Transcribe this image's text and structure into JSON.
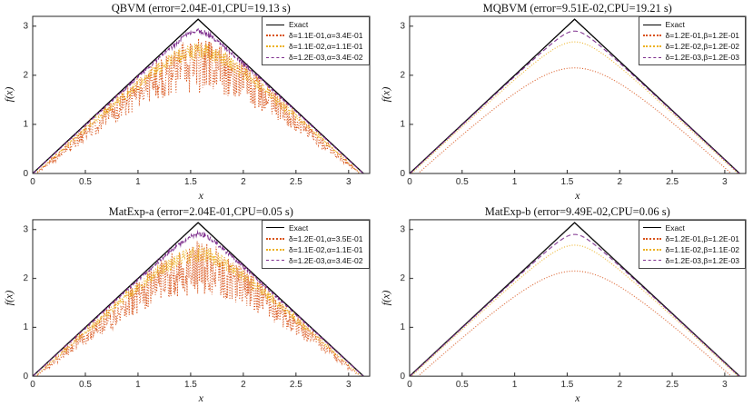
{
  "figure": {
    "background": "#ffffff",
    "axis_color": "#262626",
    "palette": {
      "exact": "#000000",
      "series1": "#D95319",
      "series2": "#EDB120",
      "series3": "#7E2F8E"
    }
  },
  "chart_data": [
    {
      "type": "line",
      "title": "QBVM (error=2.04E-01,CPU=19.13 s)",
      "xlabel": "x",
      "ylabel": "f(x)",
      "xlim": [
        0,
        3.2
      ],
      "ylim": [
        0,
        3.2
      ],
      "xticks": [
        0,
        0.5,
        1,
        1.5,
        2,
        2.5,
        3
      ],
      "xtick_labels": [
        "0",
        "0.5",
        "1",
        "1.5",
        "2",
        "2.5",
        "3"
      ],
      "yticks": [
        0,
        1,
        2,
        3
      ],
      "ytick_labels": [
        "0",
        "1",
        "2",
        "3"
      ],
      "legend_position": "top-right",
      "grid": false,
      "series": [
        {
          "name": "Exact",
          "color": "#000000",
          "style": "solid",
          "shape": "triangle",
          "peak_x": 1.5708,
          "peak_y": 3.1416,
          "points": [
            [
              0,
              0
            ],
            [
              1.5708,
              3.1416
            ],
            [
              3.1416,
              0
            ]
          ]
        },
        {
          "name": "δ=1.1E-01,α=3.4E-01",
          "color": "#D95319",
          "style": "dotted",
          "shape": "smooth",
          "peak_y": 2.5,
          "noise": 1.0,
          "seed": 101
        },
        {
          "name": "δ=1.1E-02,α=1.1E-01",
          "color": "#EDB120",
          "style": "dotted",
          "shape": "smooth",
          "peak_y": 2.58,
          "noise": 0.3,
          "seed": 202
        },
        {
          "name": "δ=1.2E-03,α=3.4E-02",
          "color": "#7E2F8E",
          "style": "dashed",
          "shape": "smooth",
          "peak_y": 2.93,
          "noise": 0.08,
          "seed": 303
        }
      ]
    },
    {
      "type": "line",
      "title": "MQBVM (error=9.51E-02,CPU=19.21 s)",
      "xlabel": "x",
      "ylabel": "f(x)",
      "xlim": [
        0,
        3.2
      ],
      "ylim": [
        0,
        3.2
      ],
      "xticks": [
        0,
        0.5,
        1,
        1.5,
        2,
        2.5,
        3
      ],
      "xtick_labels": [
        "0",
        "0.5",
        "1",
        "1.5",
        "2",
        "2.5",
        "3"
      ],
      "yticks": [
        0,
        1,
        2,
        3
      ],
      "ytick_labels": [
        "0",
        "1",
        "2",
        "3"
      ],
      "legend_position": "top-right",
      "grid": false,
      "series": [
        {
          "name": "Exact",
          "color": "#000000",
          "style": "solid",
          "shape": "triangle",
          "peak_x": 1.5708,
          "peak_y": 3.1416,
          "points": [
            [
              0,
              0
            ],
            [
              1.5708,
              3.1416
            ],
            [
              3.1416,
              0
            ]
          ]
        },
        {
          "name": "δ=1.2E-01,β=1.2E-01",
          "color": "#D95319",
          "style": "dotted",
          "shape": "smooth",
          "peak_y": 2.15,
          "noise": 0,
          "seed": 1
        },
        {
          "name": "δ=1.2E-02,β=1.2E-02",
          "color": "#EDB120",
          "style": "dotted",
          "shape": "smooth",
          "peak_y": 2.68,
          "noise": 0,
          "seed": 1
        },
        {
          "name": "δ=1.2E-03,β=1.2E-03",
          "color": "#7E2F8E",
          "style": "dashed",
          "shape": "smooth",
          "peak_y": 2.9,
          "noise": 0,
          "seed": 1
        }
      ]
    },
    {
      "type": "line",
      "title": "MatExp-a (error=2.04E-01,CPU=0.05 s)",
      "xlabel": "x",
      "ylabel": "f(x)",
      "xlim": [
        0,
        3.2
      ],
      "ylim": [
        0,
        3.2
      ],
      "xticks": [
        0,
        0.5,
        1,
        1.5,
        2,
        2.5,
        3
      ],
      "xtick_labels": [
        "0",
        "0.5",
        "1",
        "1.5",
        "2",
        "2.5",
        "3"
      ],
      "yticks": [
        0,
        1,
        2,
        3
      ],
      "ytick_labels": [
        "0",
        "1",
        "2",
        "3"
      ],
      "legend_position": "top-right",
      "grid": false,
      "series": [
        {
          "name": "Exact",
          "color": "#000000",
          "style": "solid",
          "shape": "triangle",
          "peak_x": 1.5708,
          "peak_y": 3.1416,
          "points": [
            [
              0,
              0
            ],
            [
              1.5708,
              3.1416
            ],
            [
              3.1416,
              0
            ]
          ]
        },
        {
          "name": "δ=1.2E-01,α=3.5E-01",
          "color": "#D95319",
          "style": "dotted",
          "shape": "smooth",
          "peak_y": 2.5,
          "noise": 1.0,
          "seed": 404
        },
        {
          "name": "δ=1.1E-02,α=1.1E-01",
          "color": "#EDB120",
          "style": "dotted",
          "shape": "smooth",
          "peak_y": 2.58,
          "noise": 0.3,
          "seed": 505
        },
        {
          "name": "δ=1.2E-03,α=3.4E-02",
          "color": "#7E2F8E",
          "style": "dashed",
          "shape": "smooth",
          "peak_y": 2.93,
          "noise": 0.08,
          "seed": 606
        }
      ]
    },
    {
      "type": "line",
      "title": "MatExp-b (error=9.49E-02,CPU=0.06 s)",
      "xlabel": "x",
      "ylabel": "f(x)",
      "xlim": [
        0,
        3.2
      ],
      "ylim": [
        0,
        3.2
      ],
      "xticks": [
        0,
        0.5,
        1,
        1.5,
        2,
        2.5,
        3
      ],
      "xtick_labels": [
        "0",
        "0.5",
        "1",
        "1.5",
        "2",
        "2.5",
        "3"
      ],
      "yticks": [
        0,
        1,
        2,
        3
      ],
      "ytick_labels": [
        "0",
        "1",
        "2",
        "3"
      ],
      "legend_position": "top-right",
      "grid": false,
      "series": [
        {
          "name": "Exact",
          "color": "#000000",
          "style": "solid",
          "shape": "triangle",
          "peak_x": 1.5708,
          "peak_y": 3.1416,
          "points": [
            [
              0,
              0
            ],
            [
              1.5708,
              3.1416
            ],
            [
              3.1416,
              0
            ]
          ]
        },
        {
          "name": "δ=1.2E-01,β=1.2E-01",
          "color": "#D95319",
          "style": "dotted",
          "shape": "smooth",
          "peak_y": 2.15,
          "noise": 0,
          "seed": 1
        },
        {
          "name": "δ=1.1E-02,β=1.1E-02",
          "color": "#EDB120",
          "style": "dotted",
          "shape": "smooth",
          "peak_y": 2.68,
          "noise": 0,
          "seed": 1
        },
        {
          "name": "δ=1.2E-03,β=1.2E-03",
          "color": "#7E2F8E",
          "style": "dashed",
          "shape": "smooth",
          "peak_y": 2.9,
          "noise": 0,
          "seed": 1
        }
      ]
    }
  ]
}
